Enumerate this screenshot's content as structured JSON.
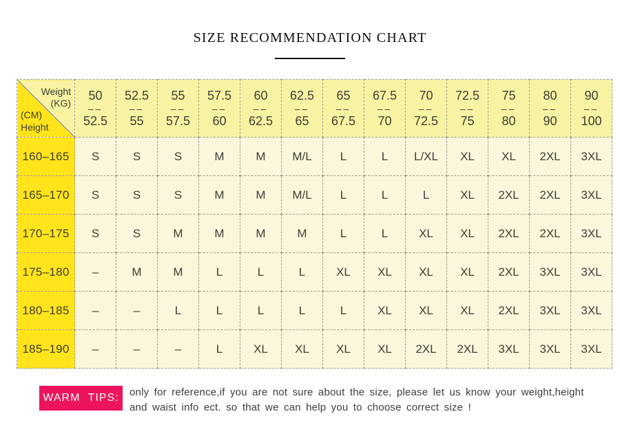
{
  "header": {
    "title": "SIZE RECOMMENDATION CHART"
  },
  "table": {
    "corner": {
      "weight": "Weight",
      "kg_unit": "(KG)",
      "cm_unit": "(CM)",
      "height": "Height"
    },
    "weight_separator": "––",
    "columns": [
      {
        "min": "50",
        "max": "52.5"
      },
      {
        "min": "52.5",
        "max": "55"
      },
      {
        "min": "55",
        "max": "57.5"
      },
      {
        "min": "57.5",
        "max": "60"
      },
      {
        "min": "60",
        "max": "62.5"
      },
      {
        "min": "62.5",
        "max": "65"
      },
      {
        "min": "65",
        "max": "67.5"
      },
      {
        "min": "67.5",
        "max": "70"
      },
      {
        "min": "70",
        "max": "72.5"
      },
      {
        "min": "72.5",
        "max": "75"
      },
      {
        "min": "75",
        "max": "80"
      },
      {
        "min": "80",
        "max": "90"
      },
      {
        "min": "90",
        "max": "100"
      }
    ],
    "rows": [
      {
        "height": "160–165",
        "sizes": [
          "S",
          "S",
          "S",
          "M",
          "M",
          "M/L",
          "L",
          "L",
          "L/XL",
          "XL",
          "XL",
          "2XL",
          "3XL"
        ]
      },
      {
        "height": "165–170",
        "sizes": [
          "S",
          "S",
          "S",
          "M",
          "M",
          "M/L",
          "L",
          "L",
          "L",
          "XL",
          "2XL",
          "2XL",
          "3XL"
        ]
      },
      {
        "height": "170–175",
        "sizes": [
          "S",
          "S",
          "M",
          "M",
          "M",
          "M",
          "L",
          "L",
          "XL",
          "XL",
          "2XL",
          "2XL",
          "3XL"
        ]
      },
      {
        "height": "175–180",
        "sizes": [
          "–",
          "M",
          "M",
          "L",
          "L",
          "L",
          "XL",
          "XL",
          "XL",
          "XL",
          "2XL",
          "3XL",
          "3XL"
        ]
      },
      {
        "height": "180–185",
        "sizes": [
          "–",
          "–",
          "L",
          "L",
          "L",
          "L",
          "L",
          "XL",
          "XL",
          "XL",
          "2XL",
          "3XL",
          "3XL"
        ]
      },
      {
        "height": "185–190",
        "sizes": [
          "–",
          "–",
          "–",
          "L",
          "XL",
          "XL",
          "XL",
          "XL",
          "2XL",
          "2XL",
          "3XL",
          "3XL",
          "3XL"
        ]
      }
    ]
  },
  "tips": {
    "label": "WARM TIPS:",
    "line1": "only for reference,if you are not sure about the size, please let us know your weight,height",
    "line2": "and waist info ect. so that we can help you to choose correct size !"
  },
  "colors": {
    "bright_yellow": "#ffe41c",
    "pale_yellow": "#f7f3a3",
    "cream": "#faf7dc",
    "border_gray": "#9b998c",
    "tips_pink": "#ed145b",
    "text_dark": "#3e3d35"
  },
  "chart_data": {
    "type": "table",
    "title": "SIZE RECOMMENDATION CHART",
    "column_unit": "Weight (KG)",
    "row_unit": "Height (CM)",
    "weight_ranges_kg": [
      [
        50,
        52.5
      ],
      [
        52.5,
        55
      ],
      [
        55,
        57.5
      ],
      [
        57.5,
        60
      ],
      [
        60,
        62.5
      ],
      [
        62.5,
        65
      ],
      [
        65,
        67.5
      ],
      [
        67.5,
        70
      ],
      [
        70,
        72.5
      ],
      [
        72.5,
        75
      ],
      [
        75,
        80
      ],
      [
        80,
        90
      ],
      [
        90,
        100
      ]
    ],
    "height_ranges_cm": [
      [
        160,
        165
      ],
      [
        165,
        170
      ],
      [
        170,
        175
      ],
      [
        175,
        180
      ],
      [
        180,
        185
      ],
      [
        185,
        190
      ]
    ],
    "recommended_sizes": [
      [
        "S",
        "S",
        "S",
        "M",
        "M",
        "M/L",
        "L",
        "L",
        "L/XL",
        "XL",
        "XL",
        "2XL",
        "3XL"
      ],
      [
        "S",
        "S",
        "S",
        "M",
        "M",
        "M/L",
        "L",
        "L",
        "L",
        "XL",
        "2XL",
        "2XL",
        "3XL"
      ],
      [
        "S",
        "S",
        "M",
        "M",
        "M",
        "M",
        "L",
        "L",
        "XL",
        "XL",
        "2XL",
        "2XL",
        "3XL"
      ],
      [
        "–",
        "M",
        "M",
        "L",
        "L",
        "L",
        "XL",
        "XL",
        "XL",
        "XL",
        "2XL",
        "3XL",
        "3XL"
      ],
      [
        "–",
        "–",
        "L",
        "L",
        "L",
        "L",
        "L",
        "XL",
        "XL",
        "XL",
        "2XL",
        "3XL",
        "3XL"
      ],
      [
        "–",
        "–",
        "–",
        "L",
        "XL",
        "XL",
        "XL",
        "XL",
        "2XL",
        "2XL",
        "3XL",
        "3XL",
        "3XL"
      ]
    ],
    "no_recommendation_marker": "–"
  }
}
